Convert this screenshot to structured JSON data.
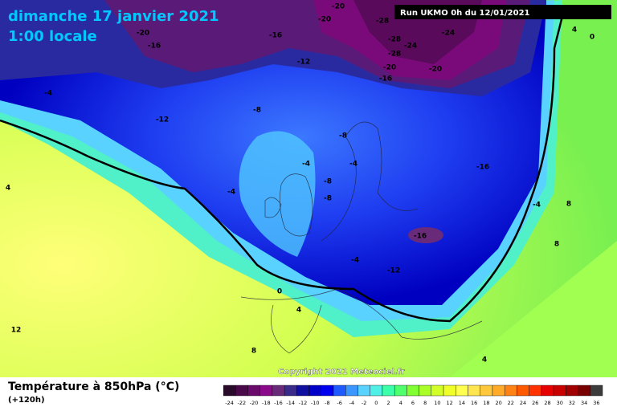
{
  "header": {
    "title": "dimanche 17 janvier 2021",
    "time": "1:00 locale",
    "run": "Run UKMO 0h du 12/01/2021"
  },
  "map": {
    "contour_labels": [
      "-20",
      "-16",
      "-16",
      "-12",
      "-20",
      "-20",
      "-28",
      "-28",
      "-24",
      "-28",
      "-20",
      "-16",
      "-24",
      "-20",
      "-4",
      "-12",
      "-8",
      "-8",
      "-4",
      "-4",
      "-8",
      "-8",
      "-4",
      "-16",
      "-4",
      "8",
      "4",
      "-16",
      "8",
      "-4",
      "-12",
      "0",
      "4",
      "12",
      "8",
      "4",
      "4",
      "0"
    ],
    "copyright": "Copyright 2021 Meteociel.fr"
  },
  "footer": {
    "title": "Température à 850hPa (°C)",
    "lead": "(+120h)"
  },
  "colorbar": {
    "labels": [
      -24,
      -22,
      -20,
      -18,
      -16,
      -14,
      -12,
      -10,
      -8,
      -6,
      -4,
      -2,
      0,
      2,
      4,
      6,
      8,
      10,
      12,
      14,
      16,
      18,
      20,
      22,
      24,
      26,
      28,
      30,
      32,
      34,
      36
    ],
    "colors": [
      "#2a0a2a",
      "#4a0a4a",
      "#6a0a6a",
      "#8a0a8a",
      "#6a2a7a",
      "#3a2a8a",
      "#1010a0",
      "#0000c8",
      "#0000f0",
      "#1e5aff",
      "#3c96ff",
      "#5ad2ff",
      "#50f0e6",
      "#3cffaa",
      "#50ff6e",
      "#82ff32",
      "#aaff28",
      "#d2ff28",
      "#f0ff28",
      "#ffff50",
      "#ffe650",
      "#ffc83c",
      "#ffaa28",
      "#ff8214",
      "#ff5a00",
      "#ff3200",
      "#e60000",
      "#c80000",
      "#a00000",
      "#780000",
      "#3c3c3c"
    ]
  }
}
